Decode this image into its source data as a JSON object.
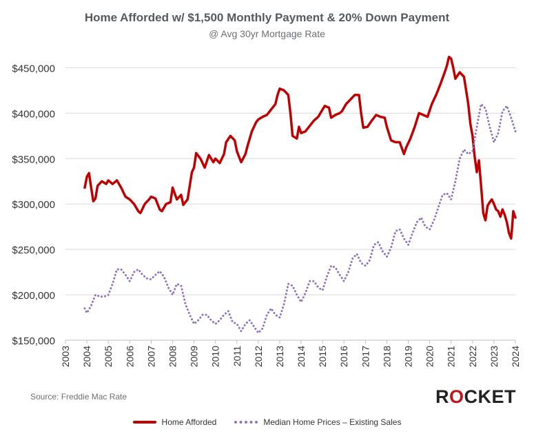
{
  "chart_data": {
    "type": "line",
    "title": "Home Afforded w/ $1,500 Monthly Payment & 20% Down Payment",
    "subtitle": "@ Avg 30yr Mortgage Rate",
    "xlabel": "",
    "ylabel": "",
    "xlim": [
      2003,
      2024
    ],
    "ylim": [
      150000,
      470000
    ],
    "x_ticks": [
      "2003",
      "2004",
      "2005",
      "2006",
      "2007",
      "2008",
      "2009",
      "2010",
      "2011",
      "2012",
      "2013",
      "2014",
      "2015",
      "2016",
      "2017",
      "2018",
      "2019",
      "2020",
      "2021",
      "2022",
      "2023",
      "2024"
    ],
    "y_ticks": [
      {
        "value": 150000,
        "label": "$150,000"
      },
      {
        "value": 200000,
        "label": "$200,000"
      },
      {
        "value": 250000,
        "label": "$250,000"
      },
      {
        "value": 300000,
        "label": "$300,000"
      },
      {
        "value": 350000,
        "label": "$350,000"
      },
      {
        "value": 400000,
        "label": "$400,000"
      },
      {
        "value": 450000,
        "label": "$450,000"
      }
    ],
    "grid": "horizontal",
    "legend_position": "bottom",
    "series": [
      {
        "name": "Home Afforded",
        "style": "solid",
        "color": "#c00000",
        "points": [
          [
            2003.9,
            318000
          ],
          [
            2004.0,
            330000
          ],
          [
            2004.1,
            334000
          ],
          [
            2004.2,
            318000
          ],
          [
            2004.3,
            303000
          ],
          [
            2004.4,
            306000
          ],
          [
            2004.5,
            320000
          ],
          [
            2004.7,
            325000
          ],
          [
            2004.9,
            322000
          ],
          [
            2005.0,
            326000
          ],
          [
            2005.2,
            322000
          ],
          [
            2005.4,
            326000
          ],
          [
            2005.6,
            318000
          ],
          [
            2005.8,
            308000
          ],
          [
            2006.0,
            305000
          ],
          [
            2006.2,
            300000
          ],
          [
            2006.4,
            292000
          ],
          [
            2006.5,
            290000
          ],
          [
            2006.7,
            300000
          ],
          [
            2006.9,
            305000
          ],
          [
            2007.0,
            308000
          ],
          [
            2007.2,
            306000
          ],
          [
            2007.4,
            294000
          ],
          [
            2007.5,
            292000
          ],
          [
            2007.7,
            300000
          ],
          [
            2007.9,
            302000
          ],
          [
            2008.0,
            318000
          ],
          [
            2008.2,
            305000
          ],
          [
            2008.4,
            310000
          ],
          [
            2008.5,
            299000
          ],
          [
            2008.7,
            305000
          ],
          [
            2008.9,
            335000
          ],
          [
            2009.0,
            340000
          ],
          [
            2009.1,
            356000
          ],
          [
            2009.3,
            350000
          ],
          [
            2009.5,
            340000
          ],
          [
            2009.7,
            354000
          ],
          [
            2009.9,
            346000
          ],
          [
            2010.0,
            350000
          ],
          [
            2010.2,
            345000
          ],
          [
            2010.4,
            355000
          ],
          [
            2010.5,
            368000
          ],
          [
            2010.7,
            375000
          ],
          [
            2010.9,
            370000
          ],
          [
            2011.0,
            358000
          ],
          [
            2011.2,
            346000
          ],
          [
            2011.4,
            355000
          ],
          [
            2011.5,
            364000
          ],
          [
            2011.7,
            380000
          ],
          [
            2011.9,
            390000
          ],
          [
            2012.0,
            393000
          ],
          [
            2012.2,
            396000
          ],
          [
            2012.4,
            398000
          ],
          [
            2012.6,
            404000
          ],
          [
            2012.8,
            410000
          ],
          [
            2012.9,
            420000
          ],
          [
            2013.0,
            427000
          ],
          [
            2013.2,
            425000
          ],
          [
            2013.4,
            420000
          ],
          [
            2013.5,
            400000
          ],
          [
            2013.6,
            375000
          ],
          [
            2013.8,
            372000
          ],
          [
            2013.9,
            385000
          ],
          [
            2014.0,
            378000
          ],
          [
            2014.2,
            380000
          ],
          [
            2014.4,
            386000
          ],
          [
            2014.6,
            392000
          ],
          [
            2014.8,
            396000
          ],
          [
            2014.9,
            400000
          ],
          [
            2015.1,
            408000
          ],
          [
            2015.3,
            406000
          ],
          [
            2015.4,
            395000
          ],
          [
            2015.6,
            398000
          ],
          [
            2015.8,
            400000
          ],
          [
            2015.9,
            402000
          ],
          [
            2016.1,
            410000
          ],
          [
            2016.3,
            415000
          ],
          [
            2016.5,
            420000
          ],
          [
            2016.7,
            420000
          ],
          [
            2016.8,
            400000
          ],
          [
            2016.9,
            384000
          ],
          [
            2017.1,
            385000
          ],
          [
            2017.3,
            392000
          ],
          [
            2017.5,
            398000
          ],
          [
            2017.7,
            396000
          ],
          [
            2017.9,
            395000
          ],
          [
            2018.0,
            385000
          ],
          [
            2018.2,
            370000
          ],
          [
            2018.4,
            368000
          ],
          [
            2018.6,
            368000
          ],
          [
            2018.8,
            355000
          ],
          [
            2018.9,
            362000
          ],
          [
            2019.1,
            372000
          ],
          [
            2019.3,
            385000
          ],
          [
            2019.5,
            400000
          ],
          [
            2019.7,
            398000
          ],
          [
            2019.9,
            396000
          ],
          [
            2020.1,
            410000
          ],
          [
            2020.3,
            420000
          ],
          [
            2020.5,
            432000
          ],
          [
            2020.7,
            445000
          ],
          [
            2020.8,
            452000
          ],
          [
            2020.9,
            462000
          ],
          [
            2021.0,
            460000
          ],
          [
            2021.1,
            450000
          ],
          [
            2021.2,
            438000
          ],
          [
            2021.4,
            445000
          ],
          [
            2021.6,
            440000
          ],
          [
            2021.7,
            425000
          ],
          [
            2021.8,
            410000
          ],
          [
            2021.9,
            388000
          ],
          [
            2022.0,
            375000
          ],
          [
            2022.1,
            352000
          ],
          [
            2022.2,
            335000
          ],
          [
            2022.3,
            348000
          ],
          [
            2022.4,
            320000
          ],
          [
            2022.5,
            290000
          ],
          [
            2022.6,
            282000
          ],
          [
            2022.7,
            298000
          ],
          [
            2022.8,
            302000
          ],
          [
            2022.9,
            305000
          ],
          [
            2023.0,
            300000
          ],
          [
            2023.1,
            294000
          ],
          [
            2023.2,
            292000
          ],
          [
            2023.3,
            286000
          ],
          [
            2023.4,
            294000
          ],
          [
            2023.5,
            288000
          ],
          [
            2023.6,
            280000
          ],
          [
            2023.7,
            268000
          ],
          [
            2023.8,
            262000
          ],
          [
            2023.85,
            275000
          ],
          [
            2023.9,
            292000
          ],
          [
            2024.0,
            285000
          ]
        ]
      },
      {
        "name": "Median Home Prices - Existing Sales",
        "style": "dotted",
        "color": "#8e72c4",
        "points": [
          [
            2003.9,
            185000
          ],
          [
            2004.0,
            180000
          ],
          [
            2004.2,
            188000
          ],
          [
            2004.4,
            200000
          ],
          [
            2004.6,
            198000
          ],
          [
            2004.8,
            198000
          ],
          [
            2005.0,
            200000
          ],
          [
            2005.2,
            212000
          ],
          [
            2005.4,
            228000
          ],
          [
            2005.6,
            228000
          ],
          [
            2005.8,
            222000
          ],
          [
            2006.0,
            215000
          ],
          [
            2006.2,
            225000
          ],
          [
            2006.4,
            228000
          ],
          [
            2006.6,
            222000
          ],
          [
            2006.8,
            218000
          ],
          [
            2007.0,
            217000
          ],
          [
            2007.2,
            222000
          ],
          [
            2007.4,
            226000
          ],
          [
            2007.6,
            220000
          ],
          [
            2007.8,
            208000
          ],
          [
            2008.0,
            200000
          ],
          [
            2008.2,
            212000
          ],
          [
            2008.4,
            210000
          ],
          [
            2008.6,
            190000
          ],
          [
            2008.8,
            178000
          ],
          [
            2009.0,
            168000
          ],
          [
            2009.2,
            172000
          ],
          [
            2009.4,
            178000
          ],
          [
            2009.6,
            178000
          ],
          [
            2009.8,
            172000
          ],
          [
            2010.0,
            168000
          ],
          [
            2010.2,
            172000
          ],
          [
            2010.4,
            178000
          ],
          [
            2010.6,
            182000
          ],
          [
            2010.8,
            170000
          ],
          [
            2011.0,
            168000
          ],
          [
            2011.2,
            160000
          ],
          [
            2011.4,
            168000
          ],
          [
            2011.6,
            172000
          ],
          [
            2011.8,
            165000
          ],
          [
            2012.0,
            158000
          ],
          [
            2012.2,
            163000
          ],
          [
            2012.4,
            178000
          ],
          [
            2012.6,
            185000
          ],
          [
            2012.8,
            178000
          ],
          [
            2013.0,
            175000
          ],
          [
            2013.2,
            190000
          ],
          [
            2013.4,
            212000
          ],
          [
            2013.6,
            210000
          ],
          [
            2013.8,
            200000
          ],
          [
            2014.0,
            192000
          ],
          [
            2014.2,
            202000
          ],
          [
            2014.4,
            215000
          ],
          [
            2014.6,
            215000
          ],
          [
            2014.8,
            208000
          ],
          [
            2015.0,
            205000
          ],
          [
            2015.2,
            220000
          ],
          [
            2015.4,
            232000
          ],
          [
            2015.6,
            230000
          ],
          [
            2015.8,
            222000
          ],
          [
            2016.0,
            215000
          ],
          [
            2016.2,
            225000
          ],
          [
            2016.4,
            240000
          ],
          [
            2016.6,
            245000
          ],
          [
            2016.8,
            235000
          ],
          [
            2017.0,
            232000
          ],
          [
            2017.2,
            238000
          ],
          [
            2017.4,
            255000
          ],
          [
            2017.6,
            258000
          ],
          [
            2017.8,
            248000
          ],
          [
            2018.0,
            242000
          ],
          [
            2018.2,
            252000
          ],
          [
            2018.4,
            270000
          ],
          [
            2018.6,
            272000
          ],
          [
            2018.8,
            262000
          ],
          [
            2019.0,
            255000
          ],
          [
            2019.2,
            268000
          ],
          [
            2019.4,
            280000
          ],
          [
            2019.6,
            285000
          ],
          [
            2019.8,
            275000
          ],
          [
            2020.0,
            272000
          ],
          [
            2020.2,
            282000
          ],
          [
            2020.4,
            296000
          ],
          [
            2020.6,
            310000
          ],
          [
            2020.8,
            312000
          ],
          [
            2021.0,
            305000
          ],
          [
            2021.2,
            325000
          ],
          [
            2021.4,
            350000
          ],
          [
            2021.6,
            360000
          ],
          [
            2021.8,
            355000
          ],
          [
            2022.0,
            358000
          ],
          [
            2022.2,
            385000
          ],
          [
            2022.4,
            410000
          ],
          [
            2022.6,
            405000
          ],
          [
            2022.8,
            385000
          ],
          [
            2023.0,
            368000
          ],
          [
            2023.2,
            378000
          ],
          [
            2023.4,
            402000
          ],
          [
            2023.6,
            408000
          ],
          [
            2023.8,
            395000
          ],
          [
            2024.0,
            380000
          ]
        ]
      }
    ]
  },
  "source": "Source: Freddie Mac Rate",
  "logo": {
    "pre": "R",
    "mid": "O",
    "post": "CKET"
  },
  "legend": [
    {
      "label": "Home Afforded"
    },
    {
      "label": "Median Home Prices – Existing Sales"
    }
  ]
}
